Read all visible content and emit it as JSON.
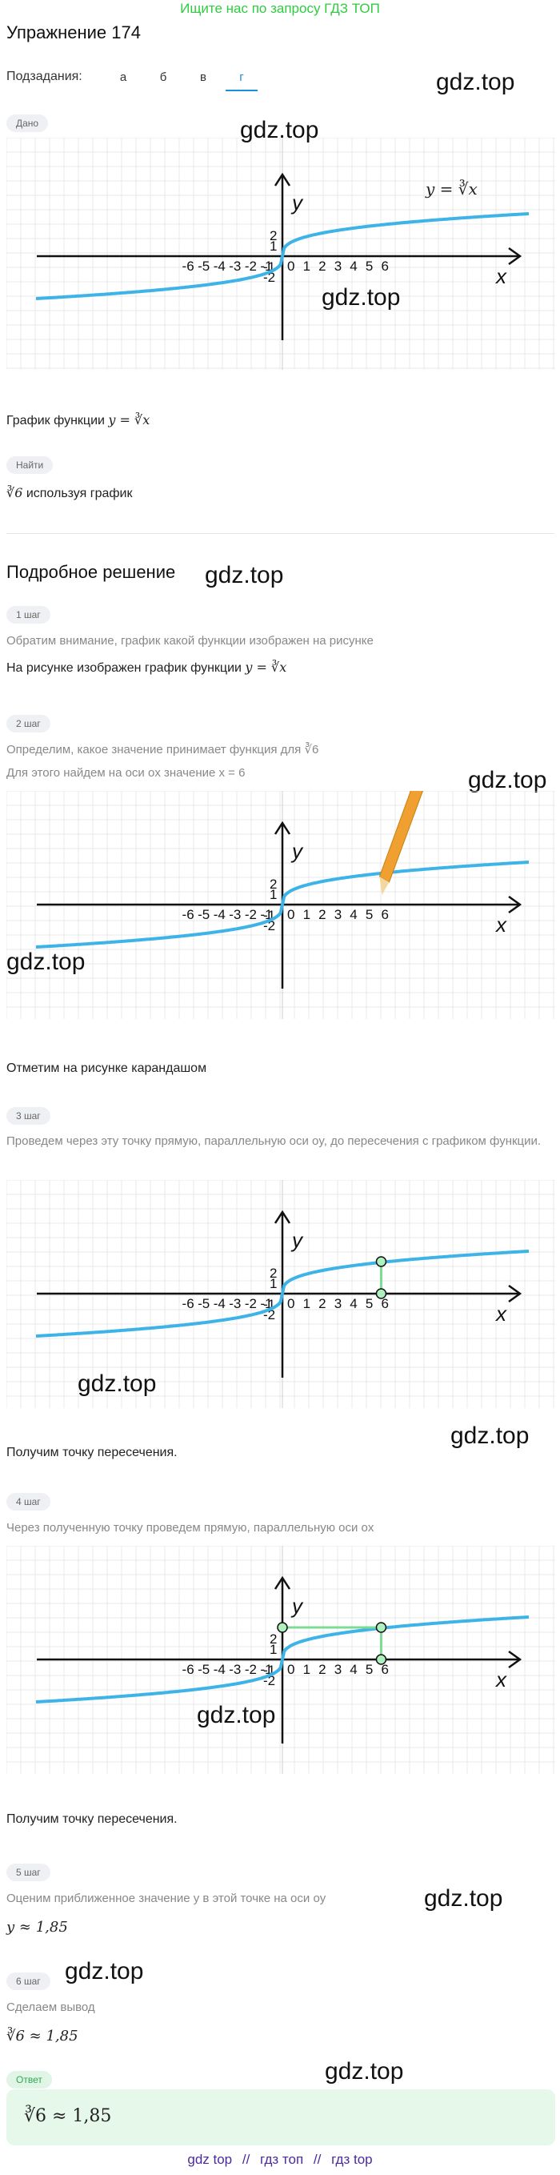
{
  "banner": "Ищите нас по запросу ГДЗ ТОП",
  "title": "Упражнение 174",
  "subtasks": {
    "label": "Подзадания:",
    "tabs": [
      "а",
      "б",
      "в",
      "г"
    ],
    "active": "г"
  },
  "watermark": "gdz.top",
  "given": {
    "badge": "Дано",
    "function_label": "y = ∛x",
    "caption_prefix": "График функции",
    "caption_math": "y = ∛x"
  },
  "find": {
    "badge": "Найти",
    "math": "∛6",
    "text": "используя график"
  },
  "solution": {
    "heading": "Подробное решение",
    "steps": [
      {
        "badge": "1 шаг",
        "hint": "Обратим внимание, график какой функции изображен на рисунке",
        "text": "На рисунке изображен график функции",
        "math": "y = ∛x"
      },
      {
        "badge": "2 шаг",
        "hint": "Определим, какое значение принимает функция для ∛6",
        "hint2": "Для этого найдем на оси ox значение x = 6",
        "after": "Отметим на рисунке карандашом"
      },
      {
        "badge": "3 шаг",
        "hint": "Проведем через эту точку прямую, параллельную оси oy, до пересечения с графиком функции.",
        "after": "Получим точку пересечения."
      },
      {
        "badge": "4 шаг",
        "hint": "Через полученную точку проведем прямую, параллельную оси ox",
        "after": "Получим точку пересечения."
      },
      {
        "badge": "5 шаг",
        "hint": "Оценим приближенное значение y в этой точке на оси oy",
        "result": "y ≈ 1,85"
      },
      {
        "badge": "6 шаг",
        "hint": "Сделаем вывод",
        "result": "∛6 ≈ 1,85"
      }
    ]
  },
  "answer": {
    "badge": "Ответ",
    "text": "∛6 ≈ 1,85"
  },
  "graph": {
    "x_ticks": [
      "-6",
      "-5",
      "-4",
      "-3",
      "-2",
      "-1",
      "0",
      "1",
      "2",
      "3",
      "4",
      "5",
      "6"
    ],
    "y_ticks": [
      "2",
      "1",
      "-1",
      "-2"
    ],
    "x_axis": "x",
    "y_axis": "y"
  },
  "footer": [
    "gdz top",
    "//",
    "гдз топ",
    "//",
    "гдз top"
  ],
  "colors": {
    "curve": "#3db3e8",
    "guide": "#7ddc93",
    "pencil": "#f0a030",
    "active_tab": "#1a8fe0"
  }
}
